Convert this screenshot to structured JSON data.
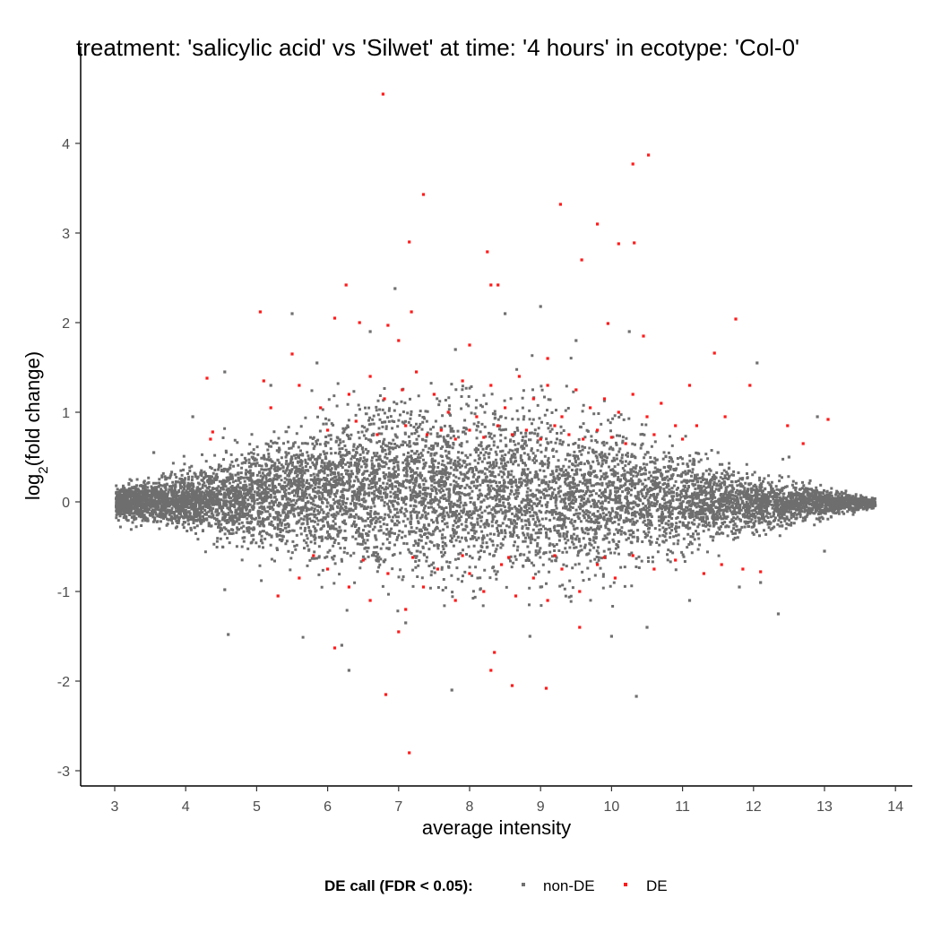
{
  "chart_data": {
    "type": "scatter",
    "title": "treatment: 'salicylic acid' vs 'Silwet' at time: '4 hours' in ecotype: 'Col-0'",
    "xlabel": "average intensity",
    "ylabel_main": "log",
    "ylabel_sub": "2",
    "ylabel_rest": "(fold change)",
    "xlim": [
      2.5,
      14.3
    ],
    "ylim": [
      -3.15,
      4.85
    ],
    "x_ticks": [
      3,
      4,
      5,
      6,
      7,
      8,
      9,
      10,
      11,
      12,
      13,
      14
    ],
    "x_tick_labels": [
      "3",
      "4",
      "5",
      "6",
      "7",
      "8",
      "9",
      "10",
      "11",
      "12",
      "13",
      "14"
    ],
    "y_ticks": [
      -3,
      -2,
      -1,
      0,
      1,
      2,
      3,
      4
    ],
    "y_tick_labels": [
      "-3",
      "-2",
      "-1",
      "0",
      "1",
      "2",
      "3",
      "4"
    ],
    "grid": false,
    "legend": {
      "position": "bottom",
      "title": "DE call (FDR < 0.05):",
      "entries": [
        {
          "label": "non-DE",
          "color": "#707070"
        },
        {
          "label": "DE",
          "color": "#ff1a1a"
        }
      ]
    },
    "background_cloud": {
      "series": "non-DE",
      "description_points": [
        [
          3.0,
          0.0
        ],
        [
          13.7,
          -0.05
        ]
      ],
      "envelope_upper": [
        [
          3.0,
          0.15
        ],
        [
          4,
          0.35
        ],
        [
          5,
          0.65
        ],
        [
          6,
          0.9
        ],
        [
          7,
          1.1
        ],
        [
          8,
          1.1
        ],
        [
          9,
          1.0
        ],
        [
          10,
          0.85
        ],
        [
          11,
          0.55
        ],
        [
          12,
          0.3
        ],
        [
          13,
          0.15
        ],
        [
          13.7,
          0.05
        ]
      ],
      "envelope_lower": [
        [
          3.0,
          -0.15
        ],
        [
          4,
          -0.3
        ],
        [
          5,
          -0.5
        ],
        [
          6,
          -0.65
        ],
        [
          7,
          -0.8
        ],
        [
          8,
          -0.85
        ],
        [
          9,
          -0.8
        ],
        [
          10,
          -0.7
        ],
        [
          11,
          -0.5
        ],
        [
          12,
          -0.3
        ],
        [
          13,
          -0.15
        ],
        [
          13.7,
          -0.05
        ]
      ]
    },
    "series": [
      {
        "name": "non-DE",
        "color": "#707070",
        "points": [
          [
            3.55,
            0.55
          ],
          [
            4.1,
            0.95
          ],
          [
            4.55,
            1.45
          ],
          [
            4.55,
            -0.98
          ],
          [
            4.6,
            -1.48
          ],
          [
            5.2,
            1.3
          ],
          [
            5.5,
            2.1
          ],
          [
            5.85,
            1.55
          ],
          [
            6.2,
            -1.6
          ],
          [
            6.3,
            -1.88
          ],
          [
            6.6,
            1.9
          ],
          [
            6.95,
            2.38
          ],
          [
            7.1,
            -1.35
          ],
          [
            7.75,
            -2.1
          ],
          [
            7.8,
            1.7
          ],
          [
            8.5,
            2.1
          ],
          [
            8.85,
            -1.5
          ],
          [
            9.0,
            -0.95
          ],
          [
            9.0,
            2.18
          ],
          [
            9.5,
            1.8
          ],
          [
            10.0,
            -1.5
          ],
          [
            10.25,
            1.9
          ],
          [
            10.35,
            -2.17
          ],
          [
            10.5,
            -1.4
          ],
          [
            11.1,
            -1.1
          ],
          [
            11.5,
            0.55
          ],
          [
            11.8,
            -0.95
          ],
          [
            12.05,
            1.55
          ],
          [
            12.1,
            -0.9
          ],
          [
            12.35,
            -1.25
          ],
          [
            12.5,
            0.5
          ],
          [
            13.0,
            -0.55
          ],
          [
            12.9,
            0.95
          ]
        ]
      },
      {
        "name": "DE",
        "color": "#ff1a1a",
        "points": [
          [
            6.78,
            4.55
          ],
          [
            10.3,
            3.77
          ],
          [
            10.52,
            3.87
          ],
          [
            7.35,
            3.43
          ],
          [
            9.28,
            3.32
          ],
          [
            9.8,
            3.1
          ],
          [
            7.15,
            2.9
          ],
          [
            10.1,
            2.88
          ],
          [
            10.32,
            2.89
          ],
          [
            8.25,
            2.79
          ],
          [
            9.58,
            2.7
          ],
          [
            6.26,
            2.42
          ],
          [
            8.3,
            2.42
          ],
          [
            8.4,
            2.42
          ],
          [
            5.05,
            2.12
          ],
          [
            7.18,
            2.12
          ],
          [
            6.1,
            2.05
          ],
          [
            11.75,
            2.04
          ],
          [
            6.45,
            2.0
          ],
          [
            6.85,
            1.97
          ],
          [
            9.95,
            1.99
          ],
          [
            10.45,
            1.85
          ],
          [
            7.0,
            1.8
          ],
          [
            8.0,
            1.75
          ],
          [
            9.1,
            1.6
          ],
          [
            5.5,
            1.65
          ],
          [
            5.1,
            1.35
          ],
          [
            4.3,
            1.38
          ],
          [
            11.45,
            1.66
          ],
          [
            11.1,
            1.3
          ],
          [
            11.95,
            1.3
          ],
          [
            12.48,
            0.85
          ],
          [
            13.05,
            0.92
          ],
          [
            12.7,
            0.65
          ],
          [
            4.35,
            0.7
          ],
          [
            4.38,
            0.78
          ],
          [
            5.2,
            1.05
          ],
          [
            5.6,
            1.3
          ],
          [
            5.9,
            1.05
          ],
          [
            6.3,
            1.2
          ],
          [
            6.6,
            1.4
          ],
          [
            6.8,
            1.15
          ],
          [
            7.05,
            1.25
          ],
          [
            7.25,
            1.45
          ],
          [
            7.5,
            1.2
          ],
          [
            7.7,
            1.0
          ],
          [
            7.9,
            1.35
          ],
          [
            8.1,
            0.95
          ],
          [
            8.3,
            1.3
          ],
          [
            8.5,
            1.05
          ],
          [
            8.7,
            1.4
          ],
          [
            8.9,
            1.15
          ],
          [
            9.1,
            1.3
          ],
          [
            9.3,
            0.95
          ],
          [
            9.5,
            1.25
          ],
          [
            9.7,
            1.05
          ],
          [
            9.9,
            1.15
          ],
          [
            10.1,
            1.0
          ],
          [
            10.3,
            1.2
          ],
          [
            10.5,
            0.95
          ],
          [
            10.7,
            1.1
          ],
          [
            10.9,
            0.85
          ],
          [
            11.2,
            0.85
          ],
          [
            11.6,
            0.95
          ],
          [
            6.0,
            0.8
          ],
          [
            6.4,
            0.9
          ],
          [
            6.7,
            0.75
          ],
          [
            7.1,
            0.85
          ],
          [
            7.4,
            0.75
          ],
          [
            7.6,
            0.8
          ],
          [
            7.8,
            0.7
          ],
          [
            8.0,
            0.8
          ],
          [
            8.2,
            0.72
          ],
          [
            8.4,
            0.85
          ],
          [
            8.6,
            0.75
          ],
          [
            8.8,
            0.8
          ],
          [
            9.0,
            0.7
          ],
          [
            9.2,
            0.85
          ],
          [
            9.4,
            0.75
          ],
          [
            9.6,
            0.7
          ],
          [
            9.8,
            0.8
          ],
          [
            10.0,
            0.72
          ],
          [
            10.2,
            0.65
          ],
          [
            10.6,
            0.75
          ],
          [
            11.0,
            0.7
          ],
          [
            6.82,
            -2.15
          ],
          [
            7.15,
            -2.8
          ],
          [
            8.3,
            -1.88
          ],
          [
            8.6,
            -2.05
          ],
          [
            9.08,
            -2.08
          ],
          [
            6.1,
            -1.63
          ],
          [
            8.35,
            -1.68
          ],
          [
            9.55,
            -1.4
          ],
          [
            7.0,
            -1.45
          ],
          [
            5.3,
            -1.05
          ],
          [
            5.6,
            -0.85
          ],
          [
            6.0,
            -0.75
          ],
          [
            6.3,
            -0.95
          ],
          [
            6.6,
            -1.1
          ],
          [
            6.85,
            -0.8
          ],
          [
            7.1,
            -1.2
          ],
          [
            7.35,
            -0.95
          ],
          [
            7.55,
            -0.75
          ],
          [
            7.8,
            -1.1
          ],
          [
            8.0,
            -0.8
          ],
          [
            8.2,
            -1.0
          ],
          [
            8.45,
            -0.7
          ],
          [
            8.65,
            -1.05
          ],
          [
            8.9,
            -0.85
          ],
          [
            9.1,
            -1.1
          ],
          [
            9.3,
            -0.75
          ],
          [
            9.55,
            -1.0
          ],
          [
            9.8,
            -0.7
          ],
          [
            10.05,
            -0.85
          ],
          [
            10.3,
            -0.6
          ],
          [
            10.6,
            -0.75
          ],
          [
            10.9,
            -0.65
          ],
          [
            11.3,
            -0.8
          ],
          [
            11.55,
            -0.7
          ],
          [
            11.85,
            -0.75
          ],
          [
            12.1,
            -0.78
          ],
          [
            5.8,
            -0.6
          ],
          [
            6.5,
            -0.65
          ],
          [
            7.2,
            -0.62
          ],
          [
            7.9,
            -0.6
          ],
          [
            8.55,
            -0.62
          ],
          [
            9.2,
            -0.6
          ],
          [
            9.9,
            -0.62
          ]
        ]
      }
    ]
  }
}
